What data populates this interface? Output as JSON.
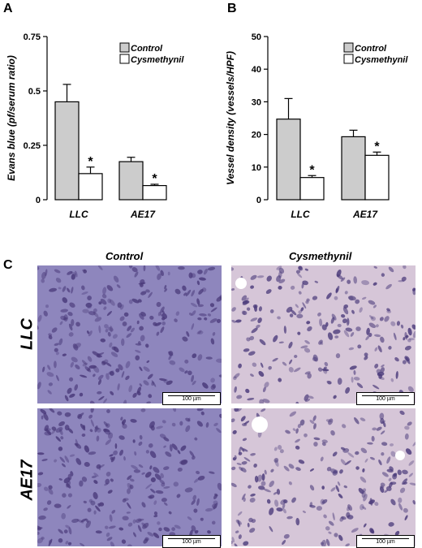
{
  "panels": {
    "a": "A",
    "b": "B",
    "c": "C"
  },
  "chart_data": [
    {
      "type": "bar",
      "ylabel": "Evans blue (pf/serum ratio)",
      "categories": [
        "LLC",
        "AE17"
      ],
      "ylim": [
        0,
        0.75
      ],
      "yticks": [
        "0",
        "0.25",
        "0.5",
        "0.75"
      ],
      "ytick_values": [
        0,
        0.25,
        0.5,
        0.75
      ],
      "series": [
        {
          "name": "Control",
          "values": [
            0.45,
            0.175
          ],
          "errors": [
            0.08,
            0.02
          ],
          "color": "#cccccc"
        },
        {
          "name": "Cysmethynil",
          "values": [
            0.12,
            0.065
          ],
          "errors": [
            0.03,
            0.006
          ],
          "color": "#ffffff"
        }
      ],
      "significance": [
        "*",
        "*"
      ],
      "legend": "top-right"
    },
    {
      "type": "bar",
      "ylabel": "Vessel density (vessels/HPF)",
      "categories": [
        "LLC",
        "AE17"
      ],
      "ylim": [
        0,
        50
      ],
      "yticks": [
        "0",
        "10",
        "20",
        "30",
        "40",
        "50"
      ],
      "ytick_values": [
        0,
        10,
        20,
        30,
        40,
        50
      ],
      "series": [
        {
          "name": "Control",
          "values": [
            24.7,
            19.3
          ],
          "errors": [
            6.3,
            2.0
          ],
          "color": "#cccccc"
        },
        {
          "name": "Cysmethynil",
          "values": [
            6.8,
            13.6
          ],
          "errors": [
            0.6,
            1.0
          ],
          "color": "#ffffff"
        }
      ],
      "significance": [
        "*",
        "*"
      ],
      "legend": "top-right"
    }
  ],
  "micrographs": {
    "columns": [
      "Control",
      "Cysmethynil"
    ],
    "rows": [
      "LLC",
      "AE17"
    ],
    "scale_bar": "100 µm",
    "colors": {
      "control_bg": "#8e86bd",
      "cysmethynil_bg": "#d6c6d8",
      "nuclei": "#4a3a7a"
    }
  }
}
